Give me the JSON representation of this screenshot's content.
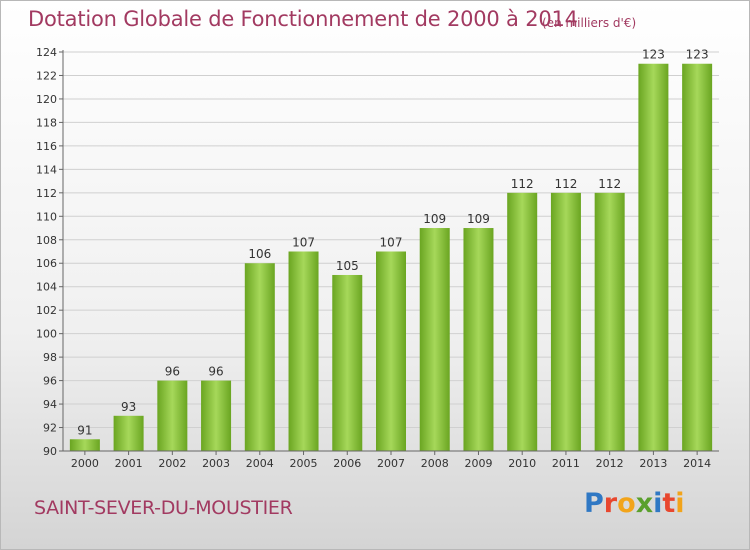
{
  "header": {
    "title": "Dotation Globale de Fonctionnement de 2000 à 2014",
    "subtitle": "(en milliers d'€)"
  },
  "commune": "SAINT-SEVER-DU-MOUSTIER",
  "logo": {
    "text": "Proxiti",
    "letters": [
      {
        "ch": "P",
        "color": "#2f78c4"
      },
      {
        "ch": "r",
        "color": "#e8472e"
      },
      {
        "ch": "o",
        "color": "#f2a41a"
      },
      {
        "ch": "x",
        "color": "#5aa02c"
      },
      {
        "ch": "i",
        "color": "#2f78c4"
      },
      {
        "ch": "t",
        "color": "#e8472e"
      },
      {
        "ch": "i",
        "color": "#f2a41a"
      }
    ]
  },
  "colors": {
    "bar_light": "#a6d85a",
    "bar_dark": "#6aa521",
    "text": "#a23a61",
    "grid": "#d0d0d0",
    "axis": "#666666"
  },
  "chart_data": {
    "type": "bar",
    "categories": [
      "2000",
      "2001",
      "2002",
      "2003",
      "2004",
      "2005",
      "2006",
      "2007",
      "2008",
      "2009",
      "2010",
      "2011",
      "2012",
      "2013",
      "2014"
    ],
    "values": [
      91,
      93,
      96,
      96,
      106,
      107,
      105,
      107,
      109,
      109,
      112,
      112,
      112,
      123,
      123
    ],
    "title": "Dotation Globale de Fonctionnement de 2000 à 2014",
    "subtitle": "(en milliers d'€)",
    "xlabel": "",
    "ylabel": "",
    "ylim": [
      90,
      124
    ],
    "yticks": [
      90,
      92,
      94,
      96,
      98,
      100,
      102,
      104,
      106,
      108,
      110,
      112,
      114,
      116,
      118,
      120,
      122,
      124
    ],
    "grid": true,
    "data_labels": true
  }
}
